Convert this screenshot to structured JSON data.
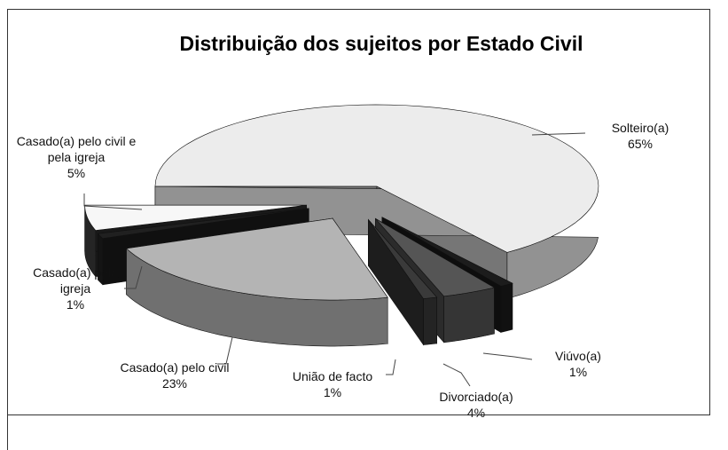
{
  "chart_data": {
    "type": "pie3d",
    "title": "Distribuição dos sujeitos por Estado Civil",
    "categories": [
      "Solteiro(a)",
      "Viúvo(a)",
      "Divorciado(a)",
      "União de facto",
      "Casado(a) pelo civil",
      "Casado(a) pela igreja",
      "Casado(a) pelo civil e pela igreja"
    ],
    "values": [
      65,
      1,
      4,
      1,
      23,
      1,
      5
    ],
    "value_labels": [
      "65%",
      "1%",
      "4%",
      "1%",
      "23%",
      "1%",
      "5%"
    ],
    "colors": [
      "#ececec",
      "#1c1c1c",
      "#555555",
      "#3a3a3a",
      "#b4b4b4",
      "#202020",
      "#f7f7f7"
    ]
  }
}
